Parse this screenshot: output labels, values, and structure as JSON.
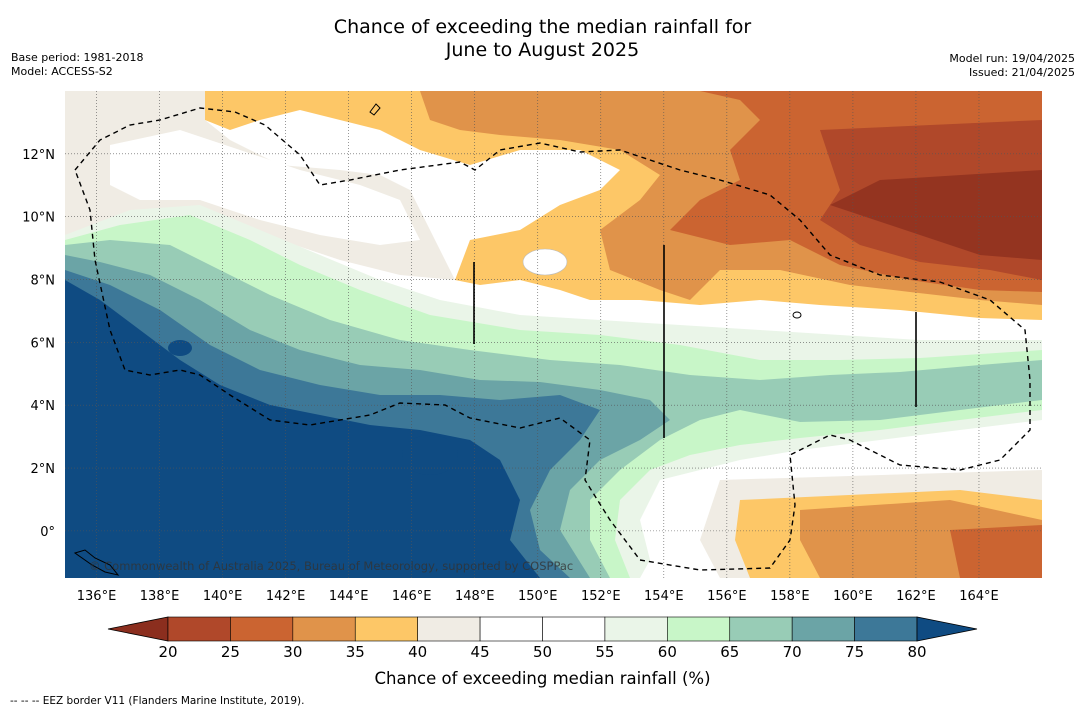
{
  "title_line1": "Chance of exceeding the median rainfall for",
  "title_line2": "June to August 2025",
  "base_period": "Base period: 1981-2018",
  "model": "Model: ACCESS-S2",
  "model_run": "Model run: 19/04/2025",
  "issued": "Issued: 21/04/2025",
  "copyright": "© Commonwealth of Australia 2025, Bureau of Meteorology, supported by COSPPac",
  "footer_legend": "--  --  -- EEZ border V11 (Flanders Marine Institute, 2019).",
  "map": {
    "lon_labels": [
      "136°E",
      "138°E",
      "140°E",
      "142°E",
      "144°E",
      "146°E",
      "148°E",
      "150°E",
      "152°E",
      "154°E",
      "156°E",
      "158°E",
      "160°E",
      "162°E",
      "164°E"
    ],
    "lon_values": [
      136,
      138,
      140,
      142,
      144,
      146,
      148,
      150,
      152,
      154,
      156,
      158,
      160,
      162,
      164
    ],
    "lat_labels": [
      "12°N",
      "10°N",
      "8°N",
      "6°N",
      "4°N",
      "2°N",
      "0°"
    ],
    "lat_values": [
      12,
      10,
      8,
      6,
      4,
      2,
      0
    ],
    "lon_range": [
      135,
      166
    ],
    "lat_range": [
      -1.5,
      14
    ]
  },
  "colorbar": {
    "title": "Chance of exceeding median rainfall (%)",
    "ticks": [
      "20",
      "25",
      "30",
      "35",
      "40",
      "45",
      "50",
      "55",
      "60",
      "65",
      "70",
      "75",
      "80"
    ],
    "under_color": "#8b2e1e",
    "over_color": "#0f4b82",
    "colors": [
      "#b0482a",
      "#cb6431",
      "#e0934a",
      "#fdc767",
      "#f0ece4",
      "#ffffff",
      "#ffffff",
      "#eaf5e8",
      "#c8f6c8",
      "#98ccb6",
      "#6ba4a6",
      "#3d7898"
    ]
  }
}
